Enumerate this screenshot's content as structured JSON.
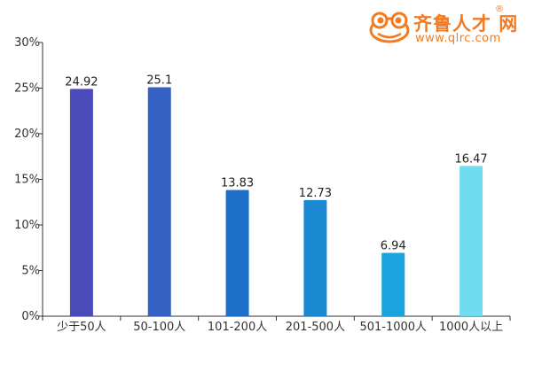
{
  "logo": {
    "name_cn": "齐鲁人才 网",
    "registered_mark": "®",
    "url": "www.qlrc.com",
    "brand_color": "#f47a20"
  },
  "chart_data": {
    "type": "bar",
    "categories": [
      "少于50人",
      "50-100人",
      "101-200人",
      "201-500人",
      "501-1000人",
      "1000人以上"
    ],
    "values": [
      24.92,
      25.1,
      13.83,
      12.73,
      6.94,
      16.47
    ],
    "value_labels": [
      "24.92",
      "25.1",
      "13.83",
      "12.73",
      "6.94",
      "16.47"
    ],
    "bar_colors": [
      "#4a4ab8",
      "#3561c4",
      "#1e6fc7",
      "#1b88d2",
      "#1aa3dc",
      "#6fdcf0"
    ],
    "ylim": [
      0,
      30
    ],
    "yticks": [
      0,
      5,
      10,
      15,
      20,
      25,
      30
    ],
    "ytick_labels": [
      "0%",
      "5%",
      "10%",
      "15%",
      "20%",
      "25%",
      "30%"
    ],
    "title": "",
    "xlabel": "",
    "ylabel": "",
    "grid": false
  }
}
